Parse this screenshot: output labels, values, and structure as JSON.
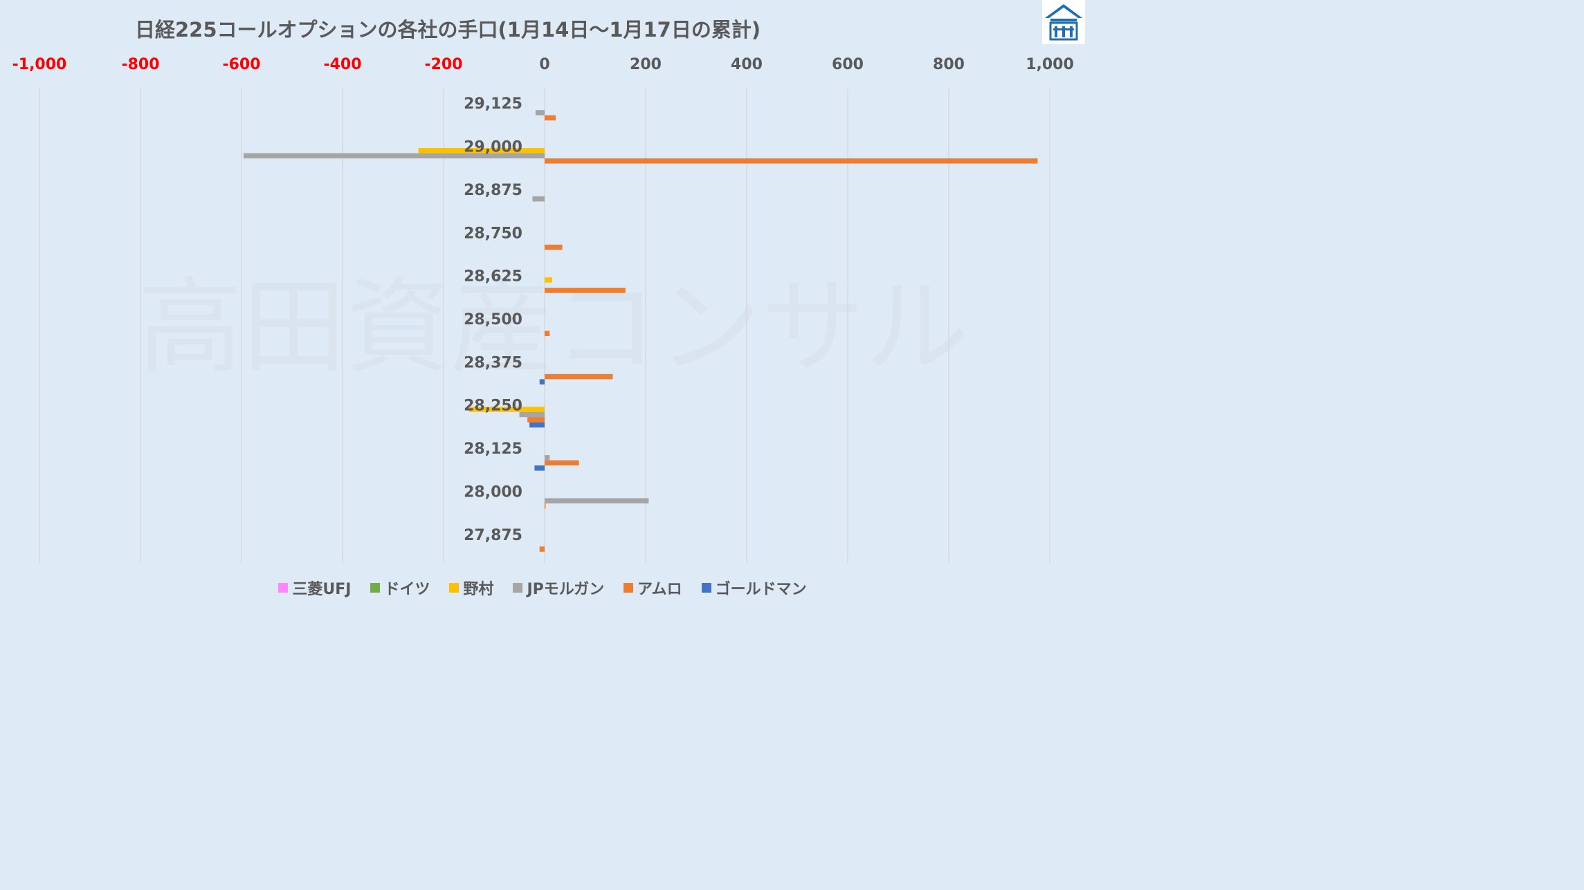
{
  "chart_data": {
    "type": "bar",
    "orientation": "horizontal",
    "title": "日経225コールオプションの各社の手口(1月14日〜1月17日の累計)",
    "watermark": "高田資産コンサル",
    "xlim": [
      -1000,
      1000
    ],
    "x_ticks": [
      "-1,000",
      "-800",
      "-600",
      "-400",
      "-200",
      "0",
      "200",
      "400",
      "600",
      "800",
      "1,000"
    ],
    "negative_tick_color": "#ff0000",
    "categories": [
      "29,125",
      "29,000",
      "28,875",
      "28,750",
      "28,625",
      "28,500",
      "28,375",
      "28,250",
      "28,125",
      "28,000",
      "27,875"
    ],
    "legend_position": "bottom",
    "grid": true,
    "series": [
      {
        "name": "三菱UFJ",
        "color": "#ff88ff",
        "values": [
          0,
          0,
          0,
          0,
          0,
          0,
          0,
          0,
          0,
          0,
          0
        ]
      },
      {
        "name": "ドイツ",
        "color": "#70ad47",
        "values": [
          0,
          0,
          0,
          0,
          0,
          0,
          0,
          0,
          0,
          0,
          0
        ]
      },
      {
        "name": "野村",
        "color": "#ffc000",
        "values": [
          0,
          -250,
          0,
          0,
          15,
          0,
          0,
          -150,
          0,
          0,
          0
        ]
      },
      {
        "name": "JPモルガン",
        "color": "#a5a5a5",
        "values": [
          -18,
          -596,
          -24,
          0,
          0,
          0,
          0,
          -50,
          10,
          206,
          0
        ]
      },
      {
        "name": "アムロ",
        "color": "#ed7d31",
        "values": [
          22,
          976,
          0,
          35,
          160,
          10,
          135,
          -34,
          68,
          2,
          -10
        ]
      },
      {
        "name": "ゴールドマン",
        "color": "#4472c4",
        "values": [
          0,
          0,
          0,
          0,
          0,
          0,
          -10,
          -30,
          -20,
          0,
          0
        ]
      }
    ]
  }
}
